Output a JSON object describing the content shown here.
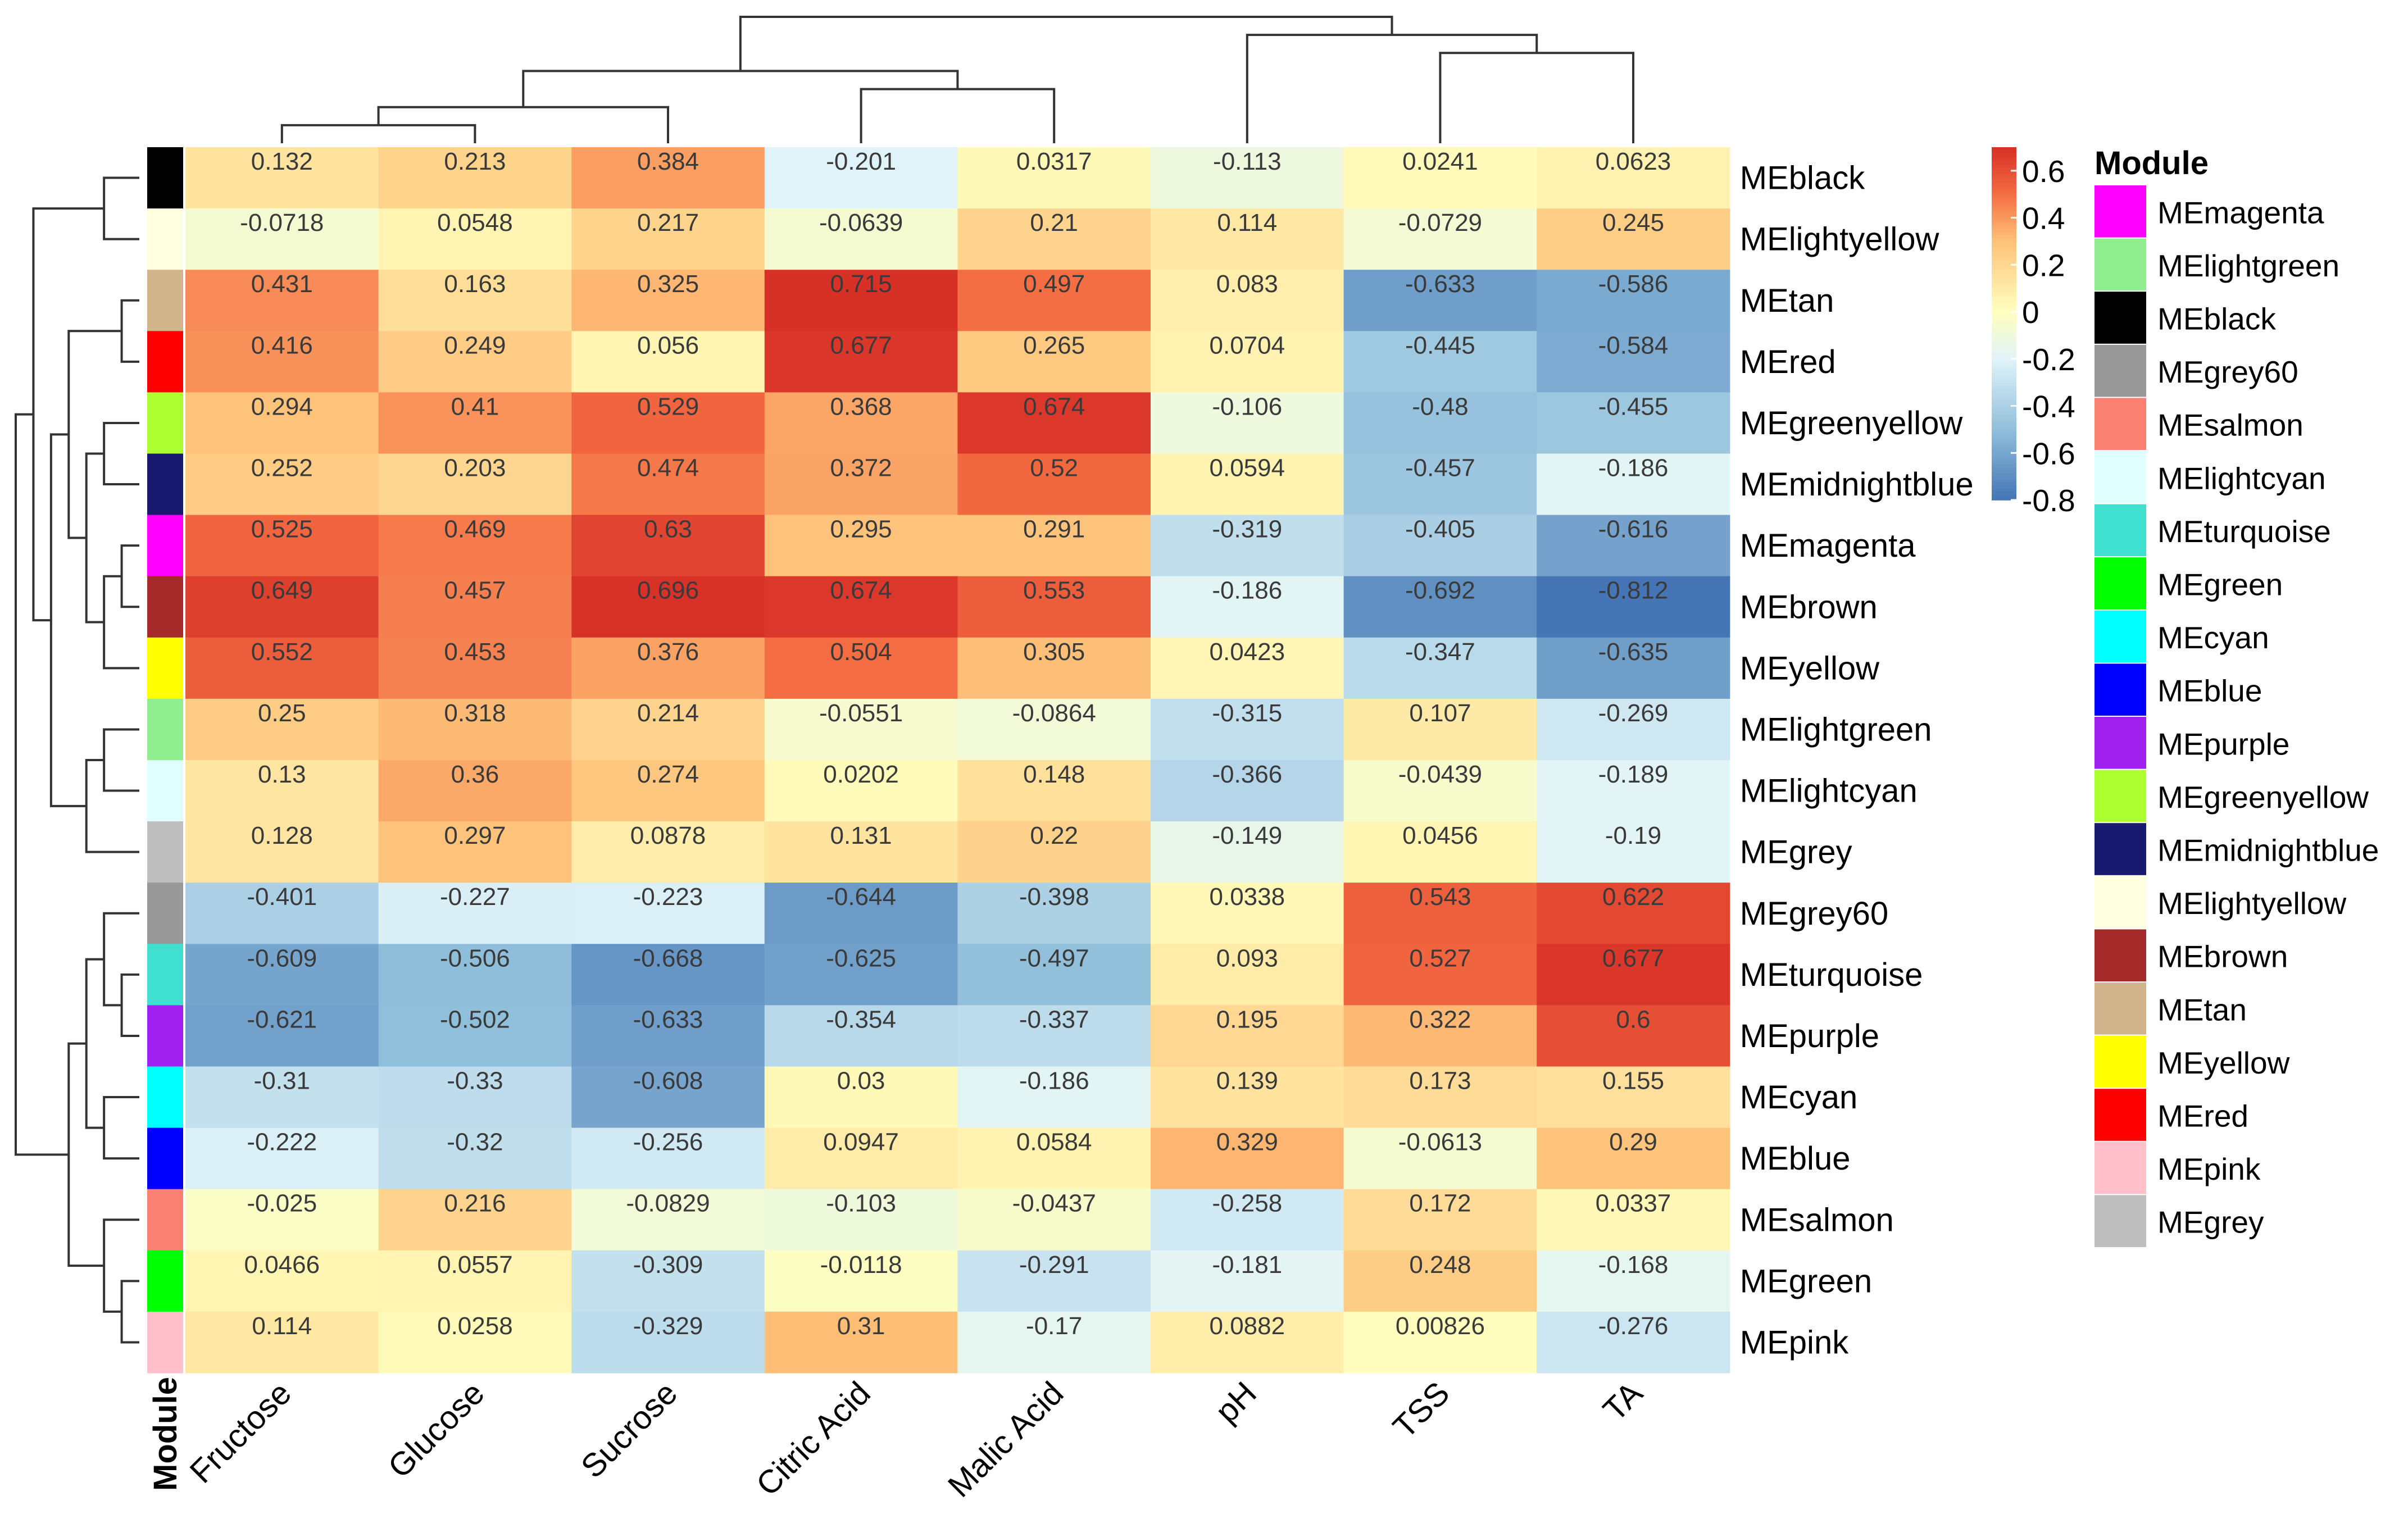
{
  "chart_data": {
    "type": "heatmap",
    "title": "",
    "columns": [
      "Fructose",
      "Glucose",
      "Sucrose",
      "Citric Acid",
      "Malic Acid",
      "pH",
      "TSS",
      "TA"
    ],
    "rows": [
      {
        "name": "MEblack",
        "color": "#000000",
        "values": [
          0.132,
          0.213,
          0.384,
          -0.201,
          0.0317,
          -0.113,
          0.0241,
          0.0623
        ],
        "labels": [
          "0.132",
          "0.213",
          "0.384",
          "-0.201",
          "0.0317",
          "-0.113",
          "0.0241",
          "0.0623"
        ]
      },
      {
        "name": "MElightyellow",
        "color": "#FFFFE0",
        "values": [
          -0.0718,
          0.0548,
          0.217,
          -0.0639,
          0.21,
          0.114,
          -0.0729,
          0.245
        ],
        "labels": [
          "-0.0718",
          "0.0548",
          "0.217",
          "-0.0639",
          "0.21",
          "0.114",
          "-0.0729",
          "0.245"
        ]
      },
      {
        "name": "MEtan",
        "color": "#D2B48C",
        "values": [
          0.431,
          0.163,
          0.325,
          0.715,
          0.497,
          0.083,
          -0.633,
          -0.586
        ],
        "labels": [
          "0.431",
          "0.163",
          "0.325",
          "0.715",
          "0.497",
          "0.083",
          "-0.633",
          "-0.586"
        ]
      },
      {
        "name": "MEred",
        "color": "#FF0000",
        "values": [
          0.416,
          0.249,
          0.056,
          0.677,
          0.265,
          0.0704,
          -0.445,
          -0.584
        ],
        "labels": [
          "0.416",
          "0.249",
          "0.056",
          "0.677",
          "0.265",
          "0.0704",
          "-0.445",
          "-0.584"
        ]
      },
      {
        "name": "MEgreenyellow",
        "color": "#ADFF2F",
        "values": [
          0.294,
          0.41,
          0.529,
          0.368,
          0.674,
          -0.106,
          -0.48,
          -0.455
        ],
        "labels": [
          "0.294",
          "0.41",
          "0.529",
          "0.368",
          "0.674",
          "-0.106",
          "-0.48",
          "-0.455"
        ]
      },
      {
        "name": "MEmidnightblue",
        "color": "#191970",
        "values": [
          0.252,
          0.203,
          0.474,
          0.372,
          0.52,
          0.0594,
          -0.457,
          -0.186
        ],
        "labels": [
          "0.252",
          "0.203",
          "0.474",
          "0.372",
          "0.52",
          "0.0594",
          "-0.457",
          "-0.186"
        ]
      },
      {
        "name": "MEmagenta",
        "color": "#FF00FF",
        "values": [
          0.525,
          0.469,
          0.63,
          0.295,
          0.291,
          -0.319,
          -0.405,
          -0.616
        ],
        "labels": [
          "0.525",
          "0.469",
          "0.63",
          "0.295",
          "0.291",
          "-0.319",
          "-0.405",
          "-0.616"
        ]
      },
      {
        "name": "MEbrown",
        "color": "#A52A2A",
        "values": [
          0.649,
          0.457,
          0.696,
          0.674,
          0.553,
          -0.186,
          -0.692,
          -0.812
        ],
        "labels": [
          "0.649",
          "0.457",
          "0.696",
          "0.674",
          "0.553",
          "-0.186",
          "-0.692",
          "-0.812"
        ]
      },
      {
        "name": "MEyellow",
        "color": "#FFFF00",
        "values": [
          0.552,
          0.453,
          0.376,
          0.504,
          0.305,
          0.0423,
          -0.347,
          -0.635
        ],
        "labels": [
          "0.552",
          "0.453",
          "0.376",
          "0.504",
          "0.305",
          "0.0423",
          "-0.347",
          "-0.635"
        ]
      },
      {
        "name": "MElightgreen",
        "color": "#90EE90",
        "values": [
          0.25,
          0.318,
          0.214,
          -0.0551,
          -0.0864,
          -0.315,
          0.107,
          -0.269
        ],
        "labels": [
          "0.25",
          "0.318",
          "0.214",
          "-0.0551",
          "-0.0864",
          "-0.315",
          "0.107",
          "-0.269"
        ]
      },
      {
        "name": "MElightcyan",
        "color": "#E0FFFF",
        "values": [
          0.13,
          0.36,
          0.274,
          0.0202,
          0.148,
          -0.366,
          -0.0439,
          -0.189
        ],
        "labels": [
          "0.13",
          "0.36",
          "0.274",
          "0.0202",
          "0.148",
          "-0.366",
          "-0.0439",
          "-0.189"
        ]
      },
      {
        "name": "MEgrey",
        "color": "#BEBEBE",
        "values": [
          0.128,
          0.297,
          0.0878,
          0.131,
          0.22,
          -0.149,
          0.0456,
          -0.19
        ],
        "labels": [
          "0.128",
          "0.297",
          "0.0878",
          "0.131",
          "0.22",
          "-0.149",
          "0.0456",
          "-0.19"
        ]
      },
      {
        "name": "MEgrey60",
        "color": "#999999",
        "values": [
          -0.401,
          -0.227,
          -0.223,
          -0.644,
          -0.398,
          0.0338,
          0.543,
          0.622
        ],
        "labels": [
          "-0.401",
          "-0.227",
          "-0.223",
          "-0.644",
          "-0.398",
          "0.0338",
          "0.543",
          "0.622"
        ]
      },
      {
        "name": "MEturquoise",
        "color": "#40E0D0",
        "values": [
          -0.609,
          -0.506,
          -0.668,
          -0.625,
          -0.497,
          0.093,
          0.527,
          0.677
        ],
        "labels": [
          "-0.609",
          "-0.506",
          "-0.668",
          "-0.625",
          "-0.497",
          "0.093",
          "0.527",
          "0.677"
        ]
      },
      {
        "name": "MEpurple",
        "color": "#A020F0",
        "values": [
          -0.621,
          -0.502,
          -0.633,
          -0.354,
          -0.337,
          0.195,
          0.322,
          0.6
        ],
        "labels": [
          "-0.621",
          "-0.502",
          "-0.633",
          "-0.354",
          "-0.337",
          "0.195",
          "0.322",
          "0.6"
        ]
      },
      {
        "name": "MEcyan",
        "color": "#00FFFF",
        "values": [
          -0.31,
          -0.33,
          -0.608,
          0.03,
          -0.186,
          0.139,
          0.173,
          0.155
        ],
        "labels": [
          "-0.31",
          "-0.33",
          "-0.608",
          "0.03",
          "-0.186",
          "0.139",
          "0.173",
          "0.155"
        ]
      },
      {
        "name": "MEblue",
        "color": "#0000FF",
        "values": [
          -0.222,
          -0.32,
          -0.256,
          0.0947,
          0.0584,
          0.329,
          -0.0613,
          0.29
        ],
        "labels": [
          "-0.222",
          "-0.32",
          "-0.256",
          "0.0947",
          "0.0584",
          "0.329",
          "-0.0613",
          "0.29"
        ]
      },
      {
        "name": "MEsalmon",
        "color": "#FA8072",
        "values": [
          -0.025,
          0.216,
          -0.0829,
          -0.103,
          -0.0437,
          -0.258,
          0.172,
          0.0337
        ],
        "labels": [
          "-0.025",
          "0.216",
          "-0.0829",
          "-0.103",
          "-0.0437",
          "-0.258",
          "0.172",
          "0.0337"
        ]
      },
      {
        "name": "MEgreen",
        "color": "#00FF00",
        "values": [
          0.0466,
          0.0557,
          -0.309,
          -0.0118,
          -0.291,
          -0.181,
          0.248,
          -0.168
        ],
        "labels": [
          "0.0466",
          "0.0557",
          "-0.309",
          "-0.0118",
          "-0.291",
          "-0.181",
          "0.248",
          "-0.168"
        ]
      },
      {
        "name": "MEpink",
        "color": "#FFC0CB",
        "values": [
          0.114,
          0.0258,
          -0.329,
          0.31,
          -0.17,
          0.0882,
          0.00826,
          -0.276
        ],
        "labels": [
          "0.114",
          "0.0258",
          "-0.329",
          "0.31",
          "-0.17",
          "0.0882",
          "0.00826",
          "-0.276"
        ]
      }
    ],
    "color_scale": {
      "min": -0.8,
      "max": 0.7,
      "stops": [
        {
          "value": -0.8,
          "color": "#4575B4"
        },
        {
          "value": -0.5,
          "color": "#91BFDB"
        },
        {
          "value": -0.2,
          "color": "#E0F3F8"
        },
        {
          "value": 0.0,
          "color": "#FFFFBF"
        },
        {
          "value": 0.3,
          "color": "#FEC279"
        },
        {
          "value": 0.5,
          "color": "#F46D43"
        },
        {
          "value": 0.7,
          "color": "#D73027"
        }
      ],
      "tick_labels": [
        "0.6",
        "0.4",
        "0.2",
        "0",
        "-0.2",
        "-0.4",
        "-0.6",
        "-0.8"
      ],
      "tick_values": [
        0.6,
        0.4,
        0.2,
        0,
        -0.2,
        -0.4,
        -0.6,
        -0.8
      ]
    },
    "annotation_title": "Module",
    "legend": {
      "title": "Module",
      "items": [
        {
          "name": "MEmagenta",
          "color": "#FF00FF"
        },
        {
          "name": "MElightgreen",
          "color": "#90EE90"
        },
        {
          "name": "MEblack",
          "color": "#000000"
        },
        {
          "name": "MEgrey60",
          "color": "#999999"
        },
        {
          "name": "MEsalmon",
          "color": "#FA8072"
        },
        {
          "name": "MElightcyan",
          "color": "#E0FFFF"
        },
        {
          "name": "MEturquoise",
          "color": "#40E0D0"
        },
        {
          "name": "MEgreen",
          "color": "#00FF00"
        },
        {
          "name": "MEcyan",
          "color": "#00FFFF"
        },
        {
          "name": "MEblue",
          "color": "#0000FF"
        },
        {
          "name": "MEpurple",
          "color": "#A020F0"
        },
        {
          "name": "MEgreenyellow",
          "color": "#ADFF2F"
        },
        {
          "name": "MEmidnightblue",
          "color": "#191970"
        },
        {
          "name": "MElightyellow",
          "color": "#FFFFE0"
        },
        {
          "name": "MEbrown",
          "color": "#A52A2A"
        },
        {
          "name": "MEtan",
          "color": "#D2B48C"
        },
        {
          "name": "MEyellow",
          "color": "#FFFF00"
        },
        {
          "name": "MEred",
          "color": "#FF0000"
        },
        {
          "name": "MEpink",
          "color": "#FFC0CB"
        },
        {
          "name": "MEgrey",
          "color": "#BEBEBE"
        }
      ]
    },
    "column_dendrogram": [
      [
        0,
        1,
        1
      ],
      [
        2,
        8,
        2
      ],
      [
        3,
        4,
        3
      ],
      [
        9,
        10,
        4
      ],
      [
        6,
        7,
        5
      ],
      [
        5,
        12,
        6
      ],
      [
        11,
        13,
        7
      ]
    ],
    "row_dendrogram": [
      [
        0,
        1,
        2
      ],
      [
        2,
        3,
        1
      ],
      [
        6,
        7,
        1
      ],
      [
        22,
        8,
        2
      ],
      [
        4,
        5,
        2
      ],
      [
        24,
        23,
        3
      ],
      [
        21,
        25,
        4
      ],
      [
        9,
        10,
        2
      ],
      [
        27,
        11,
        3
      ],
      [
        26,
        28,
        5
      ],
      [
        13,
        14,
        1
      ],
      [
        12,
        30,
        2
      ],
      [
        15,
        16,
        2
      ],
      [
        31,
        32,
        3
      ],
      [
        18,
        19,
        1
      ],
      [
        17,
        34,
        2
      ],
      [
        33,
        35,
        4
      ],
      [
        20,
        29,
        6
      ],
      [
        37,
        36,
        7
      ]
    ]
  }
}
